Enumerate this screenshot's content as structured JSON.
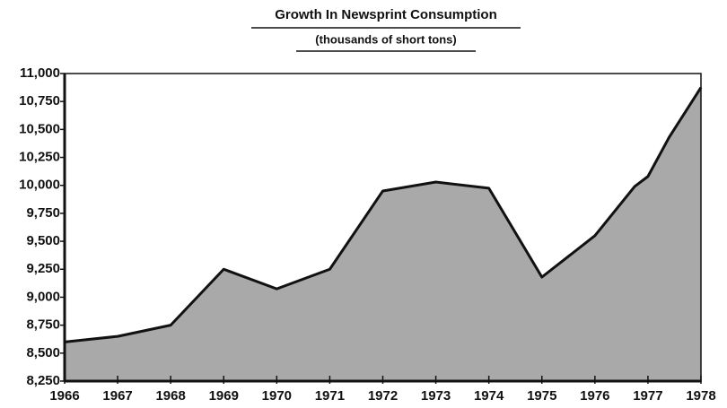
{
  "chart_data": {
    "type": "area",
    "title": "Growth In Newsprint Consumption",
    "subtitle": "(thousands of short tons)",
    "x": [
      1966,
      1967,
      1968,
      1969,
      1970,
      1971,
      1972,
      1973,
      1974,
      1975,
      1976,
      1976.75,
      1977,
      1977.4,
      1978
    ],
    "series": [
      {
        "color": "#a9a9a9",
        "values": [
          8600,
          8650,
          8750,
          9250,
          9075,
          9250,
          9950,
          10030,
          9975,
          9180,
          9550,
          9990,
          10080,
          10430,
          10875
        ]
      }
    ],
    "xlim": [
      1966,
      1978
    ],
    "xticks": [
      1966,
      1967,
      1968,
      1969,
      1970,
      1971,
      1972,
      1973,
      1974,
      1975,
      1976,
      1977,
      1978
    ],
    "ylim": [
      8250,
      11000
    ],
    "yticks": [
      {
        "value": 8250,
        "label": "8,250"
      },
      {
        "value": 8500,
        "label": "8,500"
      },
      {
        "value": 8750,
        "label": "8,750"
      },
      {
        "value": 9000,
        "label": "9,000"
      },
      {
        "value": 9250,
        "label": "9,250"
      },
      {
        "value": 9500,
        "label": "9,500"
      },
      {
        "value": 9750,
        "label": "9,750"
      },
      {
        "value": 10000,
        "label": "10,000"
      },
      {
        "value": 10250,
        "label": "10,250"
      },
      {
        "value": 10500,
        "label": "10,500"
      },
      {
        "value": 10750,
        "label": "10,750"
      },
      {
        "value": 11000,
        "label": "11,000"
      }
    ]
  }
}
